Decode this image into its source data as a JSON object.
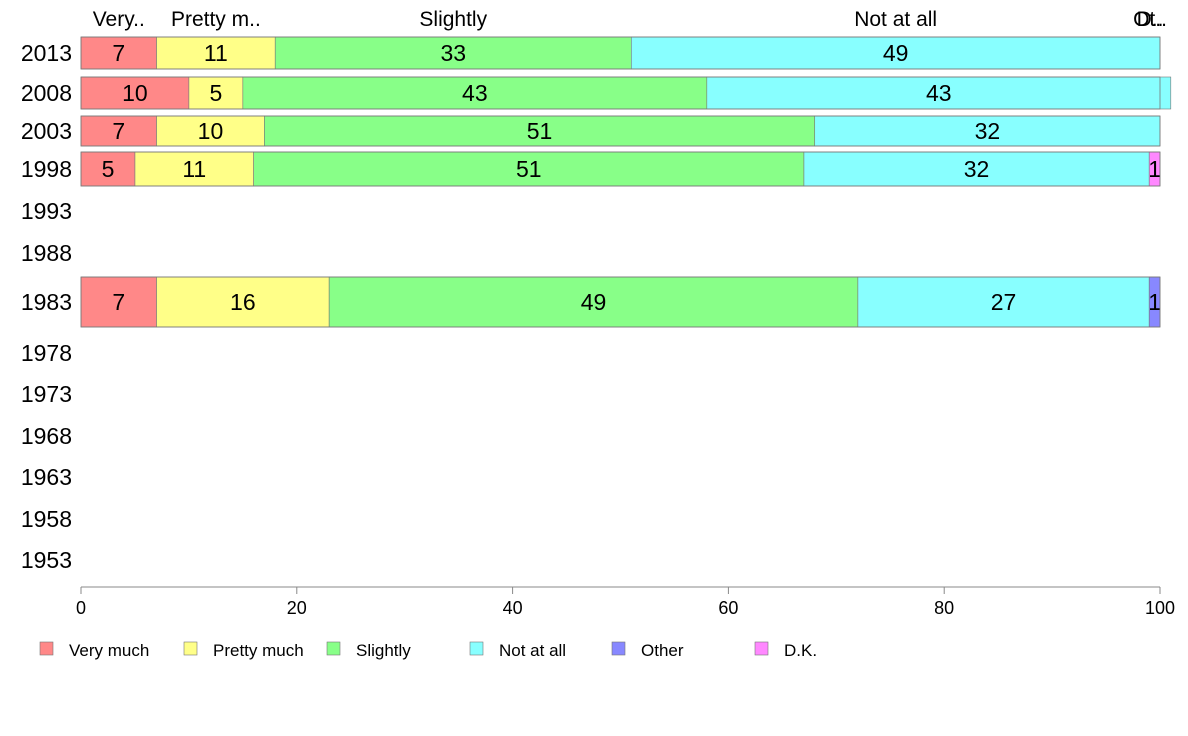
{
  "chart_data": {
    "type": "bar",
    "orientation": "horizontal",
    "stacked": true,
    "years": [
      "2013",
      "2008",
      "2003",
      "1998",
      "1993",
      "1988",
      "1983",
      "1978",
      "1973",
      "1968",
      "1963",
      "1958",
      "1953"
    ],
    "series": [
      {
        "name": "Very much",
        "short": "Very..",
        "color": "#ff8888",
        "values": [
          7,
          10,
          7,
          5,
          null,
          null,
          7,
          null,
          null,
          null,
          null,
          null,
          null
        ]
      },
      {
        "name": "Pretty much",
        "short": "Pretty m..",
        "color": "#ffff88",
        "values": [
          11,
          5,
          10,
          11,
          null,
          null,
          16,
          null,
          null,
          null,
          null,
          null,
          null
        ]
      },
      {
        "name": "Slightly",
        "short": "Slightly",
        "color": "#88ff88",
        "values": [
          33,
          43,
          51,
          51,
          null,
          null,
          49,
          null,
          null,
          null,
          null,
          null,
          null
        ]
      },
      {
        "name": "Not at all",
        "short": "Not at all",
        "color": "#88ffff",
        "values": [
          49,
          43,
          32,
          32,
          null,
          null,
          27,
          null,
          null,
          null,
          null,
          null,
          null
        ]
      },
      {
        "name": "Other",
        "short": "Ot..",
        "color": "#8888ff",
        "values": [
          0,
          0,
          0,
          0,
          null,
          null,
          1,
          null,
          null,
          null,
          null,
          null,
          null
        ]
      },
      {
        "name": "D.K.",
        "short": "D..",
        "color": "#ff88ff",
        "values": [
          0,
          0,
          0,
          1,
          null,
          null,
          0,
          null,
          null,
          null,
          null,
          null,
          null
        ]
      }
    ],
    "xlim": [
      0,
      100
    ],
    "xticks": [
      0,
      20,
      40,
      60,
      80,
      100
    ],
    "legend_position": "bottom",
    "grid": false
  }
}
